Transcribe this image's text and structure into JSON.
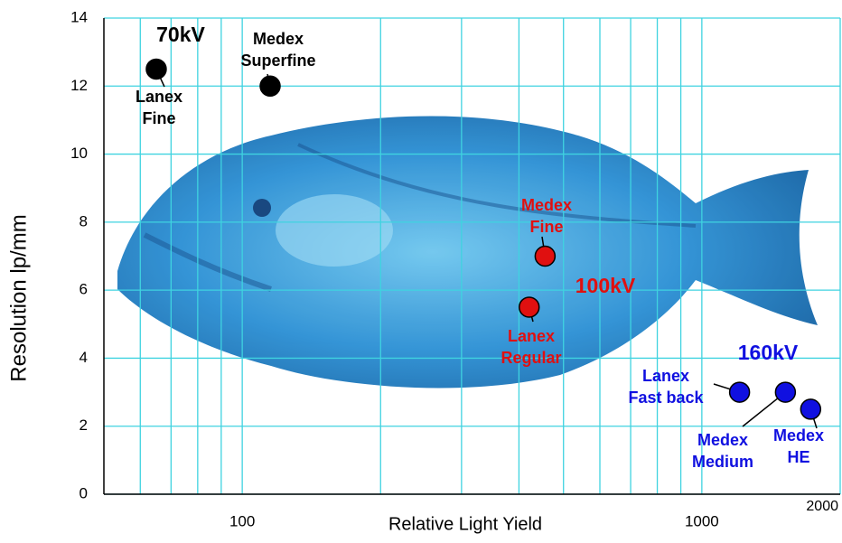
{
  "chart_data": {
    "type": "scatter",
    "x_label": "Relative Light Yield",
    "y_label": "Resolution lp/mm",
    "x_scale": "log",
    "xlim": [
      50,
      2000
    ],
    "ylim": [
      0,
      14
    ],
    "xticks": [
      100,
      1000,
      2000
    ],
    "xminorticks": [
      60,
      70,
      80,
      90,
      200,
      300,
      400,
      500,
      600,
      700,
      800,
      900
    ],
    "yticks": [
      0,
      2,
      4,
      6,
      8,
      10,
      12,
      14
    ],
    "grid": true,
    "series": [
      {
        "name": "70kV",
        "color": "#000000",
        "x": [
          65,
          115
        ],
        "values": [
          12.5,
          12
        ],
        "labels": [
          [
            "Lanex",
            "Fine"
          ],
          [
            "Medex",
            "Superfine"
          ]
        ]
      },
      {
        "name": "100kV",
        "color": "#e01010",
        "x": [
          456,
          421
        ],
        "values": [
          7,
          5.5
        ],
        "labels": [
          [
            "Medex",
            "Fine"
          ],
          [
            "Lanex",
            "Regular"
          ]
        ]
      },
      {
        "name": "160kV",
        "color": "#1010e0",
        "x": [
          1208,
          1520,
          1725
        ],
        "values": [
          3,
          3,
          2.5
        ],
        "labels": [
          [
            "Lanex",
            "Fast back"
          ],
          [
            "Medex",
            "Medium"
          ],
          [
            "Medex",
            "HE"
          ]
        ]
      }
    ]
  }
}
